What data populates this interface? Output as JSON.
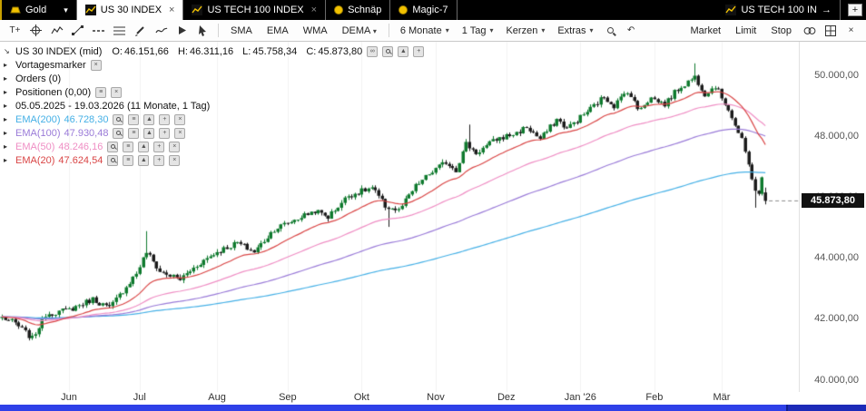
{
  "tab_bar": {
    "tabs": [
      {
        "label": "Gold",
        "icon": "gold-ingot",
        "active": false
      },
      {
        "label": "US 30 INDEX",
        "icon": "chart-spark",
        "active": true
      },
      {
        "label": "US TECH 100 INDEX",
        "icon": "chart-spark",
        "active": false
      },
      {
        "label": "Schnäp",
        "icon": "yellow-ball",
        "active": false
      },
      {
        "label": "Magic-7",
        "icon": "yellow-ball",
        "active": false
      },
      {
        "label": "US TECH 100 IN",
        "icon": "chart-spark",
        "active": false,
        "arrow": "→"
      }
    ],
    "add_button": "+"
  },
  "toolbar": {
    "tools": [
      {
        "name": "text-tool",
        "glyph": "T+"
      },
      {
        "name": "crosshair-tool"
      },
      {
        "name": "indicator-tool"
      },
      {
        "name": "trendline-tool"
      },
      {
        "name": "horizontal-line-tool"
      },
      {
        "name": "fibonacci-tool"
      },
      {
        "name": "pencil-tool"
      },
      {
        "name": "freehand-tool"
      },
      {
        "name": "play-cursor-tool"
      },
      {
        "name": "pointer-tool"
      }
    ],
    "ma_buttons": [
      "SMA",
      "EMA",
      "WMA",
      "DEMA"
    ],
    "dropdowns": [
      {
        "name": "period",
        "value": "6 Monate"
      },
      {
        "name": "interval",
        "value": "1 Tag"
      },
      {
        "name": "chart-type",
        "value": "Kerzen"
      },
      {
        "name": "extras",
        "value": "Extras"
      }
    ],
    "icon_buttons": [
      "zoom",
      "undo",
      "link-charts",
      "layout-grid",
      "close"
    ],
    "order_buttons": [
      "Market",
      "Limit",
      "Stop"
    ]
  },
  "overlay": {
    "title": "US 30 INDEX (mid)",
    "ohlc": [
      {
        "k": "O:",
        "v": "46.151,66"
      },
      {
        "k": "H:",
        "v": "46.311,16"
      },
      {
        "k": "L:",
        "v": "45.758,34"
      },
      {
        "k": "C:",
        "v": "45.873,80"
      }
    ],
    "title_chips": [
      "link",
      "search",
      "arrow-up",
      "add"
    ],
    "rows": [
      {
        "label": "Vortagesmarker",
        "chips": [
          "remove"
        ]
      },
      {
        "label": "Orders (0)",
        "chips": []
      },
      {
        "label": "Positionen (0,00)",
        "chips": [
          "settings",
          "remove"
        ]
      },
      {
        "label": "05.05.2025 - 19.03.2026  (11 Monate, 1 Tag)",
        "chips": []
      }
    ],
    "emas": [
      {
        "label": "EMA(200)",
        "value": "46.728,30"
      },
      {
        "label": "EMA(100)",
        "value": "47.930,48"
      },
      {
        "label": "EMA(50)",
        "value": "48.246,16"
      },
      {
        "label": "EMA(20)",
        "value": "47.624,54"
      }
    ],
    "ema_chips": [
      "search",
      "settings",
      "arrow-up",
      "add",
      "remove"
    ]
  },
  "price_axis_labels": [
    "50.000,00",
    "48.000,00",
    "46.000,00",
    "44.000,00",
    "42.000,00",
    "40.000,00"
  ],
  "current_price": "45.873,80",
  "chart_data": {
    "type": "candlestick",
    "title": "US 30 INDEX (mid), Kerzen, 1 Tag",
    "date_range": "05.05.2025 - 19.03.2026",
    "days": 228,
    "ylim": [
      39600,
      51100
    ],
    "y_ticks": [
      50000,
      48000,
      46000,
      44000,
      42000,
      40000
    ],
    "month_ticks": [
      {
        "label": "Jun",
        "day": 20
      },
      {
        "label": "Jul",
        "day": 41
      },
      {
        "label": "Aug",
        "day": 64
      },
      {
        "label": "Sep",
        "day": 85
      },
      {
        "label": "Okt",
        "day": 107
      },
      {
        "label": "Nov",
        "day": 129
      },
      {
        "label": "Dez",
        "day": 150
      },
      {
        "label": "Jan '26",
        "day": 172
      },
      {
        "label": "Feb",
        "day": 194
      },
      {
        "label": "Mär",
        "day": 214
      }
    ],
    "last": {
      "o": 46151.66,
      "h": 46311.16,
      "l": 45758.34,
      "c": 45873.8
    },
    "trend_anchors": [
      [
        0,
        42050
      ],
      [
        4,
        41850
      ],
      [
        9,
        41350
      ],
      [
        13,
        42150
      ],
      [
        20,
        42300
      ],
      [
        27,
        42650
      ],
      [
        32,
        42350
      ],
      [
        40,
        43500
      ],
      [
        43,
        44200
      ],
      [
        47,
        43550
      ],
      [
        53,
        43300
      ],
      [
        59,
        43850
      ],
      [
        64,
        44200
      ],
      [
        70,
        44500
      ],
      [
        75,
        44200
      ],
      [
        81,
        44950
      ],
      [
        87,
        45250
      ],
      [
        93,
        45550
      ],
      [
        97,
        45350
      ],
      [
        103,
        46050
      ],
      [
        110,
        46300
      ],
      [
        114,
        45700
      ],
      [
        118,
        45550
      ],
      [
        123,
        46350
      ],
      [
        127,
        46750
      ],
      [
        132,
        47150
      ],
      [
        135,
        46900
      ],
      [
        138,
        47750
      ],
      [
        141,
        47450
      ],
      [
        147,
        47900
      ],
      [
        153,
        48100
      ],
      [
        156,
        48300
      ],
      [
        160,
        47900
      ],
      [
        165,
        48550
      ],
      [
        168,
        48250
      ],
      [
        175,
        48900
      ],
      [
        179,
        49300
      ],
      [
        182,
        49000
      ],
      [
        186,
        49500
      ],
      [
        189,
        48900
      ],
      [
        193,
        49250
      ],
      [
        197,
        49050
      ],
      [
        201,
        49550
      ],
      [
        206,
        49950
      ],
      [
        209,
        49400
      ],
      [
        212,
        49650
      ],
      [
        216,
        48900
      ],
      [
        218,
        48350
      ],
      [
        220,
        47850
      ],
      [
        222,
        47050
      ],
      [
        224,
        46250
      ],
      [
        225,
        46050
      ],
      [
        226,
        46600
      ],
      [
        227,
        45873.8
      ]
    ],
    "spikes": [
      {
        "day": 43,
        "high": 44880
      },
      {
        "day": 115,
        "low": 45020
      },
      {
        "day": 139,
        "high": 48380
      },
      {
        "day": 206,
        "high": 50390
      },
      {
        "day": 224,
        "low": 45650
      }
    ],
    "emas": [
      {
        "period": 200,
        "color": "#45b0e6"
      },
      {
        "period": 100,
        "color": "#9a7bd8"
      },
      {
        "period": 50,
        "color": "#ef8ec4"
      },
      {
        "period": 20,
        "color": "#d94545"
      }
    ],
    "colors": {
      "up": "#0f7a2e",
      "down": "#1b1b1b",
      "grid": "#f2f2f2",
      "last_line": "#8a8a8a"
    }
  }
}
